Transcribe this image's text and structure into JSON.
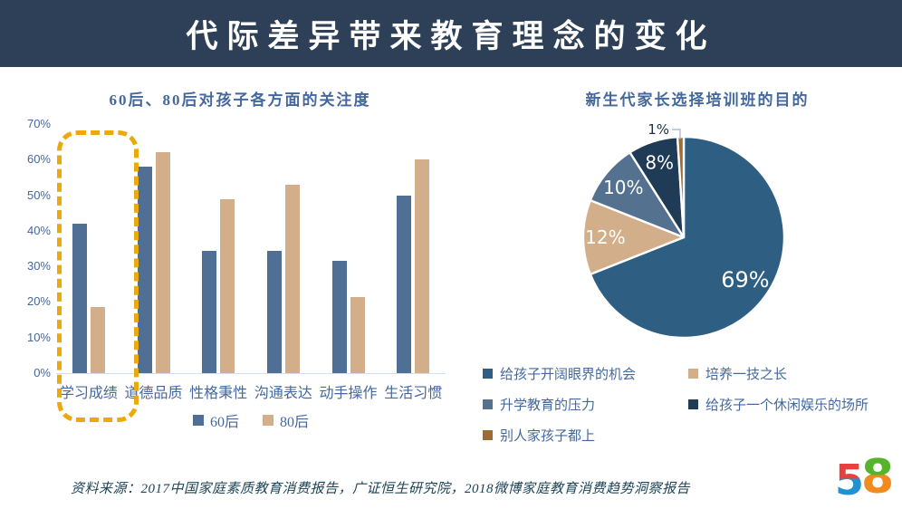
{
  "banner": {
    "title": "代际差异带来教育理念的变化",
    "bg_color": "#2E4058",
    "text_color": "#FFFFFF"
  },
  "chart_data": [
    {
      "type": "bar",
      "title": "60后、80后对孩子各方面的关注度",
      "categories": [
        "学习成绩",
        "道德品质",
        "性格秉性",
        "沟通表达",
        "动手操作",
        "生活习惯"
      ],
      "series": [
        {
          "name": "60后",
          "color": "#4F7094",
          "values": [
            42,
            58,
            34.5,
            34.5,
            31.5,
            50
          ]
        },
        {
          "name": "80后",
          "color": "#D2AF8A",
          "values": [
            18.5,
            62,
            49,
            53,
            21.5,
            60
          ]
        }
      ],
      "xlabel": "",
      "ylabel": "",
      "ylim": [
        0,
        70
      ],
      "yticks": [
        "0%",
        "10%",
        "20%",
        "30%",
        "40%",
        "50%",
        "60%",
        "70%"
      ],
      "grid": false,
      "legend_position": "bottom",
      "highlight": {
        "category": "学习成绩",
        "shape": "dashed-rounded-rect",
        "color": "#EBA90B"
      }
    },
    {
      "type": "pie",
      "title": "新生代家长选择培训班的目的",
      "slices": [
        {
          "label": "给孩子开阔眼界的机会",
          "value": 69,
          "pct_text": "69%",
          "color": "#2E5F83"
        },
        {
          "label": "培养一技之长",
          "value": 12,
          "pct_text": "12%",
          "color": "#D2AF8A"
        },
        {
          "label": "升学教育的压力",
          "value": 10,
          "pct_text": "10%",
          "color": "#54718F"
        },
        {
          "label": "给孩子一个休闲娱乐的场所",
          "value": 8,
          "pct_text": "8%",
          "color": "#1F3B56"
        },
        {
          "label": "别人家孩子都上",
          "value": 1,
          "pct_text": "1%",
          "color": "#9E6B33"
        }
      ],
      "start_angle_deg": 0,
      "direction": "clockwise",
      "legend_position": "bottom-two-columns",
      "legend_columns": [
        [
          0,
          2,
          4
        ],
        [
          1,
          3
        ]
      ],
      "label_color_inside": "#FFFFFF",
      "label_color_outside": "#1E2F45"
    }
  ],
  "source_note": "资料来源：2017中国家庭素质教育消费报告，广证恒生研究院，2018微博家庭教育消费趋势洞察报告",
  "logo": {
    "digits": [
      "5",
      "8"
    ],
    "colors": {
      "five_top": "#E8403C",
      "five_bottom": "#2191D0",
      "eight_top": "#56B32C",
      "eight_bottom": "#F28A1E"
    }
  },
  "accent_text_color": "#44689D"
}
